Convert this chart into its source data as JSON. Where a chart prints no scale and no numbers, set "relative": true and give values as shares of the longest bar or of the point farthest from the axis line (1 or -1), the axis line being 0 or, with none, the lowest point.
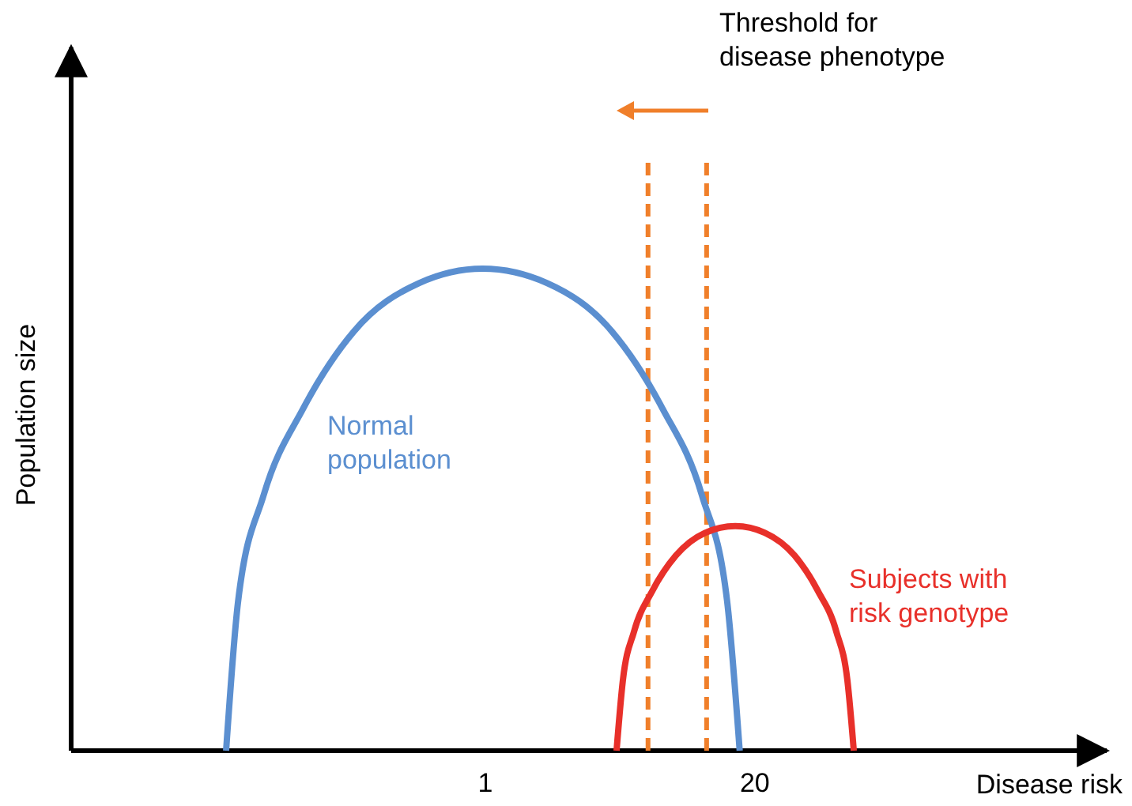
{
  "chart_data": {
    "type": "line",
    "xlabel": "Disease risk",
    "ylabel": "Population size",
    "relative": true,
    "log": "x",
    "xlim": [
      0.01,
      1000
    ],
    "xticks": [
      1,
      20
    ],
    "marker": "none",
    "line_style": "solid",
    "series": [
      {
        "name": "Normal population",
        "color": "#5b8fd0",
        "x": [
          0.056,
          0.064,
          0.085,
          0.132,
          0.232,
          0.478,
          0.97,
          1.99,
          4.08,
          7.16,
          11.1,
          14.7,
          16.9
        ],
        "values": [
          0,
          0.31,
          0.53,
          0.71,
          0.87,
          0.97,
          1,
          0.97,
          0.87,
          0.71,
          0.53,
          0.31,
          0
        ]
      },
      {
        "name": "Subjects with risk genotype",
        "color": "#e8302a",
        "x": [
          4.3,
          4.61,
          5.22,
          6.39,
          8.32,
          11.5,
          16.1,
          22.4,
          31.1,
          40.4,
          49.5,
          56.0,
          60.1
        ],
        "values": [
          0,
          0.145,
          0.247,
          0.331,
          0.405,
          0.452,
          0.466,
          0.452,
          0.405,
          0.331,
          0.247,
          0.145,
          0
        ]
      }
    ],
    "ref_lines": [
      {
        "axis": "x",
        "value": 6.1,
        "color": "#f07f2a",
        "line_style": "dashed"
      },
      {
        "axis": "x",
        "value": 11.7,
        "color": "#f07f2a",
        "line_style": "dashed"
      }
    ],
    "annotations": [
      "Threshold for disease phenotype"
    ]
  }
}
